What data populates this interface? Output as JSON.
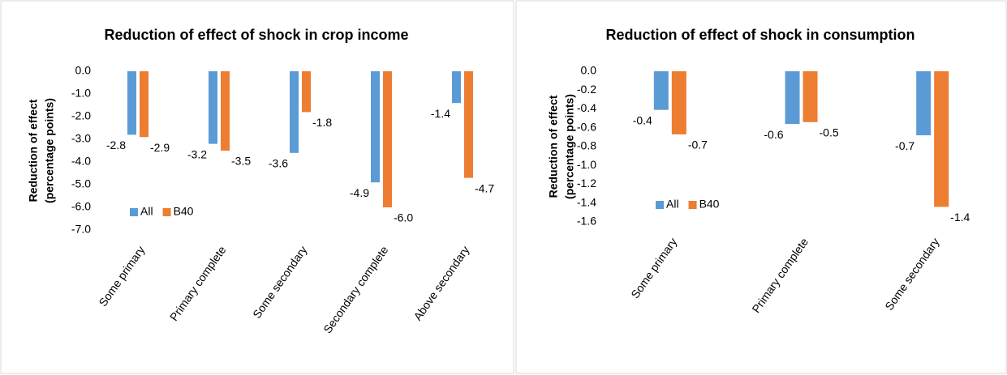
{
  "chart_data": [
    {
      "type": "bar",
      "title": "Reduction of effect of shock in crop income",
      "y_label": [
        "Reduction of effect",
        "(percentage points)"
      ],
      "categories": [
        "Some primary",
        "Primary complete",
        "Some secondary",
        "Secondary complete",
        "Above secondary"
      ],
      "series": [
        {
          "name": "All",
          "color": "#5b9bd5",
          "values": [
            -2.8,
            -3.2,
            -3.6,
            -4.9,
            -1.4
          ],
          "value_labels": [
            "-2.8",
            "-3.2",
            "-3.6",
            "-4.9",
            "-1.4"
          ]
        },
        {
          "name": "B40",
          "color": "#ed7d31",
          "values": [
            -2.9,
            -3.5,
            -1.8,
            -6.0,
            -4.7
          ],
          "value_labels": [
            "-2.9",
            "-3.5",
            "-1.8",
            "-6.0",
            "-4.7"
          ]
        }
      ],
      "ylim": [
        -7,
        0
      ],
      "yticks": [
        {
          "value": 0,
          "label": "0.0"
        },
        {
          "value": -1,
          "label": "-1.0"
        },
        {
          "value": -2,
          "label": "-2.0"
        },
        {
          "value": -3,
          "label": "-3.0"
        },
        {
          "value": -4,
          "label": "-4.0"
        },
        {
          "value": -5,
          "label": "-5.0"
        },
        {
          "value": -6,
          "label": "-6.0"
        },
        {
          "value": -7,
          "label": "-7.0"
        }
      ],
      "grid": false
    },
    {
      "type": "bar",
      "title": "Reduction of effect of shock in consumption",
      "y_label": [
        "Reduction of effect",
        "(percentage points)"
      ],
      "categories": [
        "Some primary",
        "Primary complete",
        "Some secondary"
      ],
      "series": [
        {
          "name": "All",
          "color": "#5b9bd5",
          "values": [
            -0.41,
            -0.56,
            -0.68
          ],
          "value_labels": [
            "-0.4",
            "-0.6",
            "-0.7"
          ]
        },
        {
          "name": "B40",
          "color": "#ed7d31",
          "values": [
            -0.67,
            -0.54,
            -1.44
          ],
          "value_labels": [
            "-0.7",
            "-0.5",
            "-1.4"
          ]
        }
      ],
      "ylim": [
        -1.6,
        0
      ],
      "yticks": [
        {
          "value": 0,
          "label": "0.0"
        },
        {
          "value": -0.2,
          "label": "-0.2"
        },
        {
          "value": -0.4,
          "label": "-0.4"
        },
        {
          "value": -0.6,
          "label": "-0.6"
        },
        {
          "value": -0.8,
          "label": "-0.8"
        },
        {
          "value": -1,
          "label": "-1.0"
        },
        {
          "value": -1.2,
          "label": "-1.2"
        },
        {
          "value": -1.4,
          "label": "-1.4"
        },
        {
          "value": -1.6,
          "label": "-1.6"
        }
      ],
      "grid": false
    }
  ]
}
